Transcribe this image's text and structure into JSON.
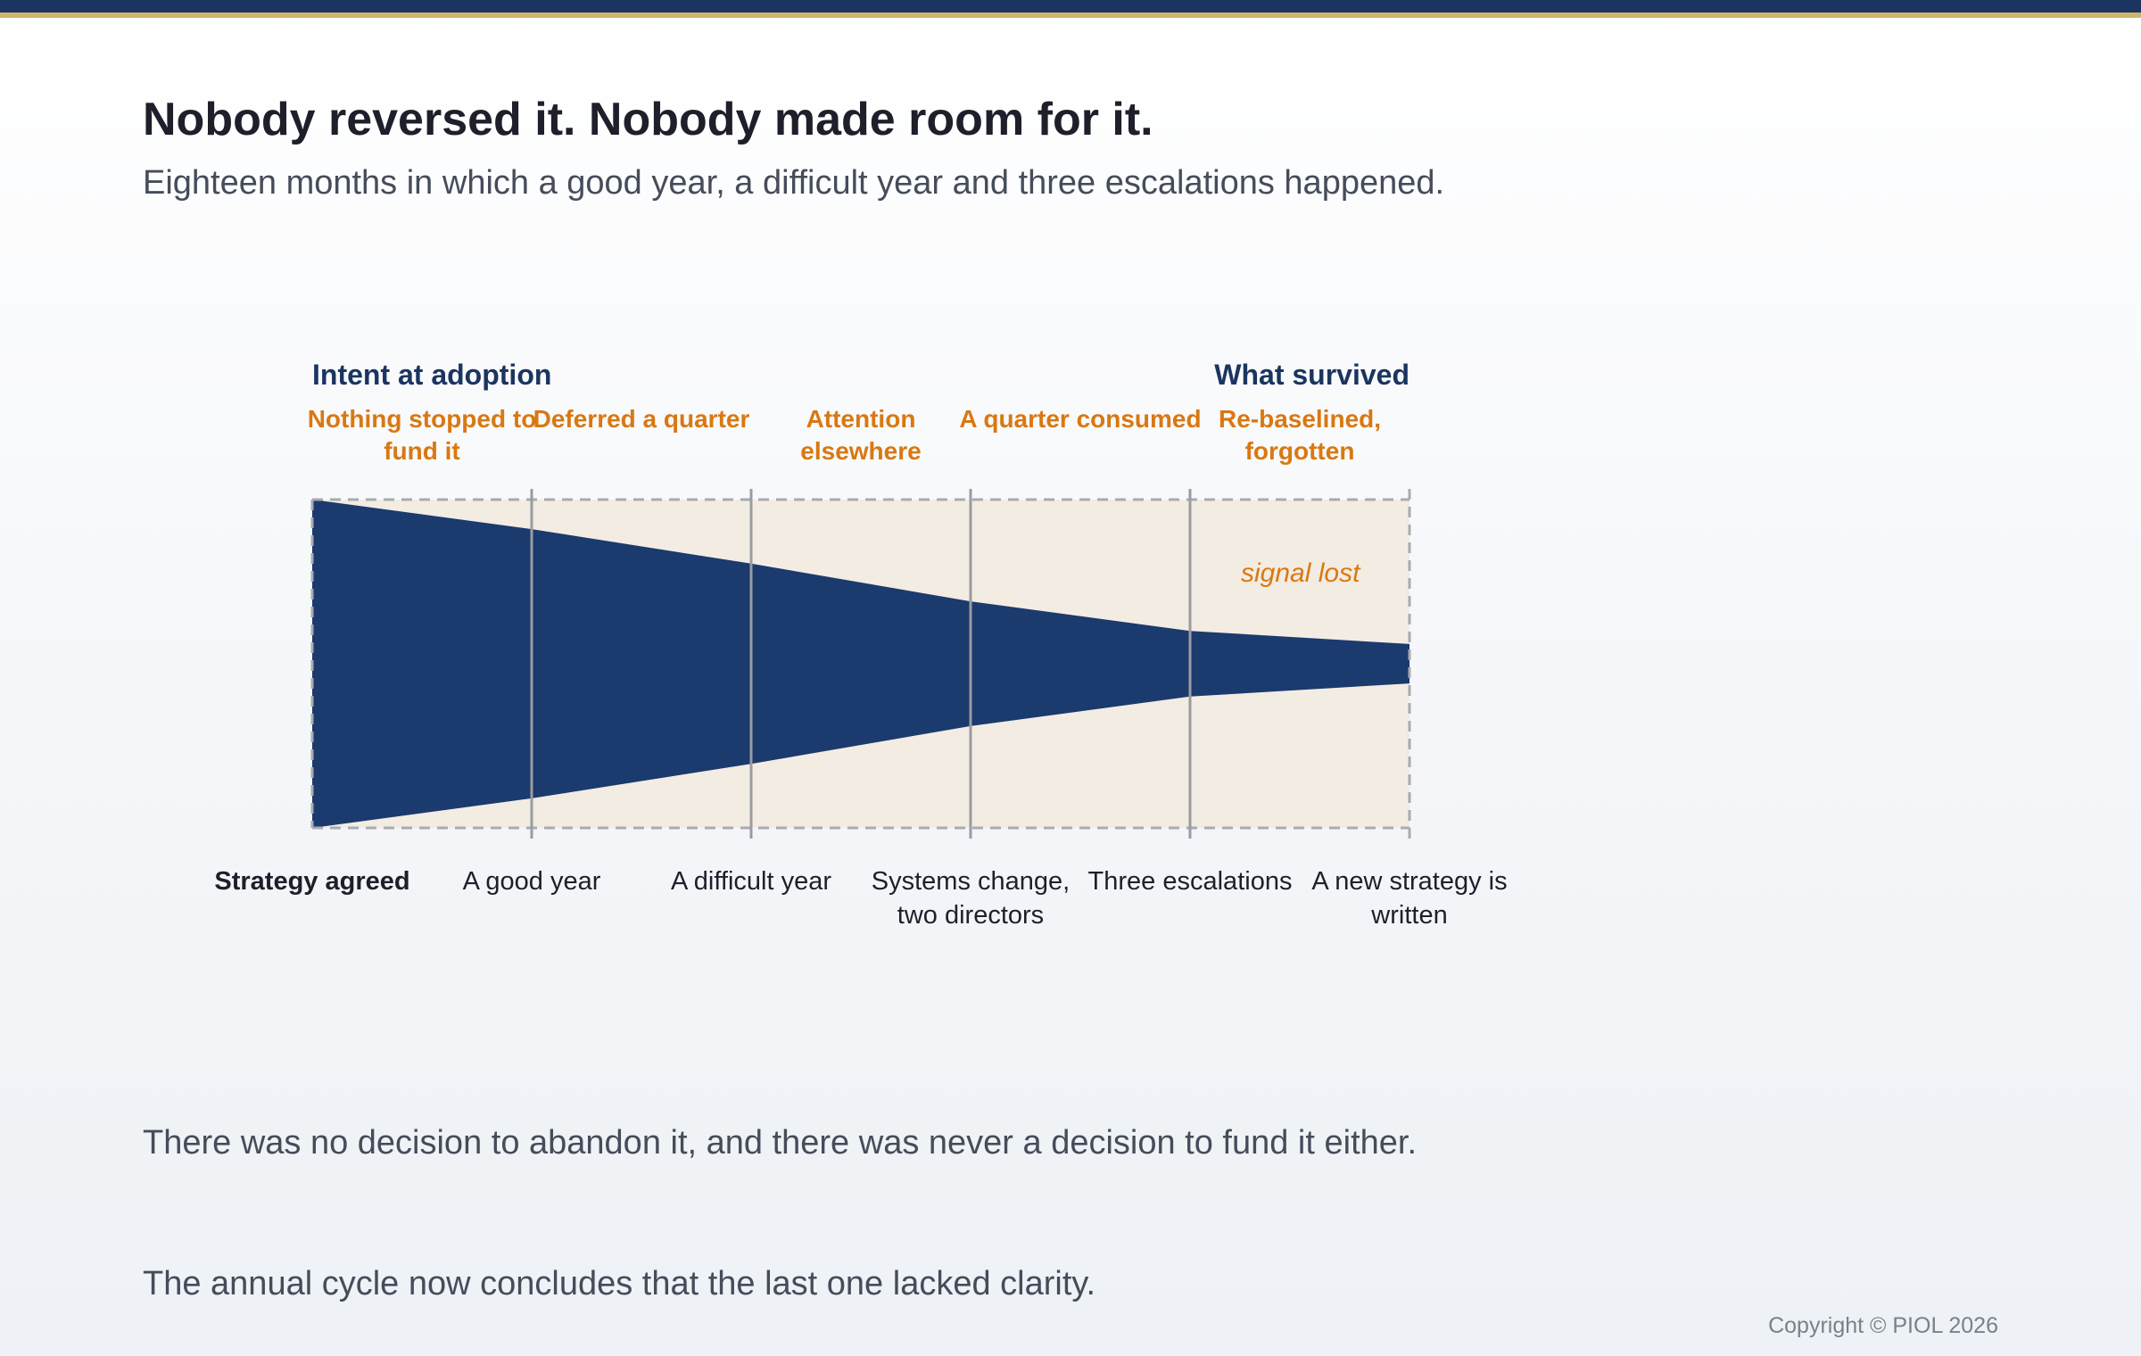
{
  "header": {
    "title": "Nobody reversed it. Nobody made room for it.",
    "subtitle": "Eighteen months in which a good year, a difficult year and three escalations happened."
  },
  "diagram": {
    "start_label": "Intent at adoption",
    "end_label": "What survived",
    "annotation": "signal lost",
    "events": [
      "Nothing stopped to\nfund it",
      "Deferred a quarter",
      "Attention\nelsewhere",
      "A quarter consumed",
      "Re-baselined,\nforgotten"
    ],
    "phases": [
      "Strategy agreed",
      "A good year",
      "A difficult year",
      "Systems change,\ntwo directors",
      "Three escalations",
      "A new strategy is\nwritten"
    ],
    "widths": [
      1.0,
      0.82,
      0.61,
      0.38,
      0.2,
      0.12
    ],
    "colors": {
      "band": "#1b3a6e",
      "field": "#f3ece2",
      "accent": "#d97812",
      "heading": "#1b3560"
    }
  },
  "notes": [
    "There was no decision to abandon it, and there was never a decision to fund it either.",
    "The annual cycle now concludes that the last one lacked clarity."
  ],
  "footer": {
    "copyright": "Copyright © PIOL 2026"
  }
}
